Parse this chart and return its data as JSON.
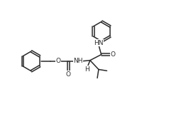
{
  "bg_color": "#ffffff",
  "line_color": "#2a2a2a",
  "line_width": 1.1,
  "font_size": 6.5,
  "figsize": [
    2.69,
    1.74
  ],
  "dpi": 100,
  "xlim": [
    0,
    10.5
  ],
  "ylim": [
    0,
    7.5
  ]
}
